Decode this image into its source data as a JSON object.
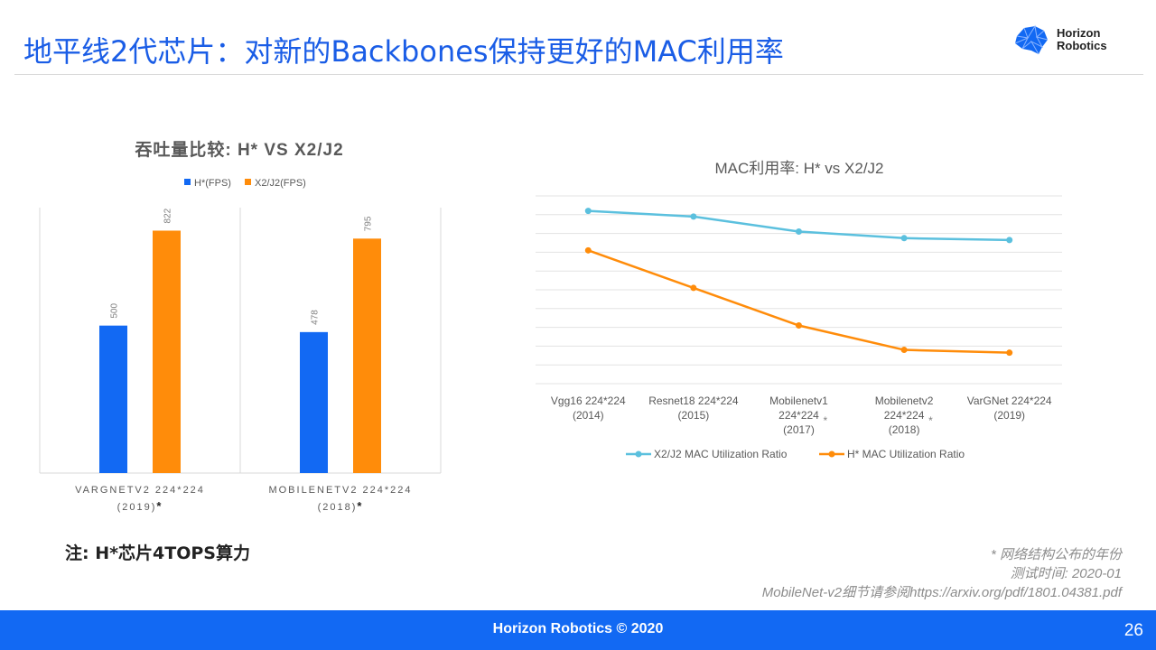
{
  "slide": {
    "title": "地平线2代芯片：对新的Backbones保持更好的MAC利用率",
    "logo_line1": "Horizon",
    "logo_line2": "Robotics",
    "note": "注: H*芯片4TOPS算力",
    "footnotes": [
      "* 网络结构公布的年份",
      "测试时间: 2020-01",
      "MobileNet-v2细节请参阅https://arxiv.org/pdf/1801.04381.pdf"
    ],
    "footer": "Horizon Robotics © 2020",
    "page_number": "26",
    "colors": {
      "accent_blue": "#1269f3",
      "orange": "#ff8c0a",
      "light_blue": "#5bc0de"
    }
  },
  "chart_data": [
    {
      "type": "bar",
      "title": "吞吐量比较: H* VS X2/J2",
      "categories": [
        {
          "line1": "VARGNETV2 224*224",
          "line2": "(2019)",
          "mark": "*"
        },
        {
          "line1": "MOBILENETV2 224*224",
          "line2": "(2018)",
          "mark": "*"
        }
      ],
      "series": [
        {
          "name": "H*(FPS)",
          "values": [
            500,
            478
          ],
          "color": "#1269f3"
        },
        {
          "name": "X2/J2(FPS)",
          "values": [
            822,
            795
          ],
          "color": "#ff8c0a"
        }
      ],
      "ylim": [
        0,
        900
      ],
      "legend": "top"
    },
    {
      "type": "line",
      "title": "MAC利用率: H* vs X2/J2",
      "categories": [
        {
          "lines": [
            "Vgg16 224*224",
            "(2014)"
          ],
          "mark": ""
        },
        {
          "lines": [
            "Resnet18 224*224",
            "(2015)"
          ],
          "mark": ""
        },
        {
          "lines": [
            "Mobilenetv1",
            "224*224",
            "(2017)"
          ],
          "mark": "*"
        },
        {
          "lines": [
            "Mobilenetv2",
            "224*224",
            "(2018)"
          ],
          "mark": "*"
        },
        {
          "lines": [
            "VarGNet 224*224",
            "(2019)"
          ],
          "mark": ""
        }
      ],
      "series": [
        {
          "name": "X2/J2 MAC Utilization Ratio",
          "values": [
            0.92,
            0.89,
            0.81,
            0.775,
            0.765
          ],
          "color": "#5bc0de"
        },
        {
          "name": "H* MAC Utilization Ratio",
          "values": [
            0.71,
            0.51,
            0.31,
            0.18,
            0.165
          ],
          "color": "#ff8c0a"
        }
      ],
      "ylim": [
        0,
        1
      ],
      "grid": true,
      "legend": "bottom"
    }
  ]
}
